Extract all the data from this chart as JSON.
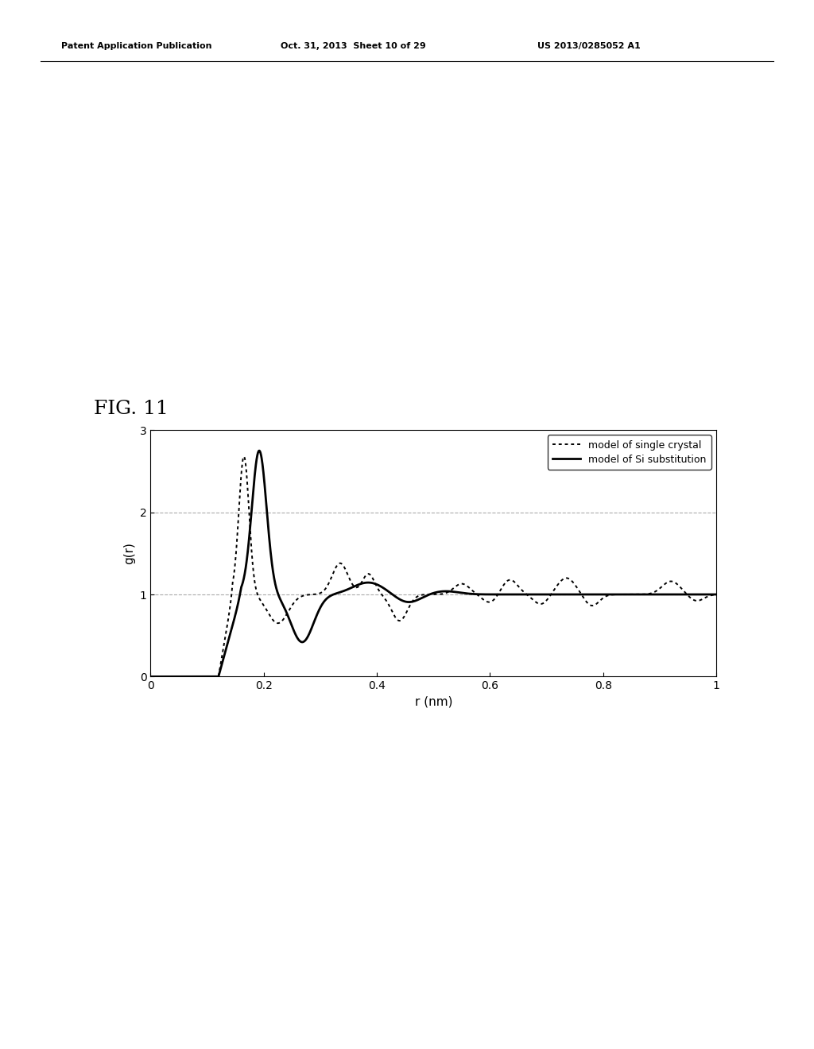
{
  "title": "FIG. 11",
  "xlabel": "r (nm)",
  "ylabel": "g(r)",
  "xlim": [
    0,
    1
  ],
  "ylim": [
    0,
    3
  ],
  "xticks": [
    0,
    0.2,
    0.4,
    0.6,
    0.8,
    1
  ],
  "yticks": [
    0,
    1,
    2,
    3
  ],
  "legend_labels": [
    "model of single crystal",
    "model of Si substitution"
  ],
  "header_left": "Patent Application Publication",
  "header_center": "Oct. 31, 2013  Sheet 10 of 29",
  "header_right": "US 2013/0285052 A1",
  "background_color": "#ffffff",
  "grid_color": "#aaaaaa",
  "line_color": "#000000",
  "fig_label_fontsize": 18,
  "axis_label_fontsize": 11,
  "tick_label_fontsize": 10,
  "header_fontsize": 8
}
